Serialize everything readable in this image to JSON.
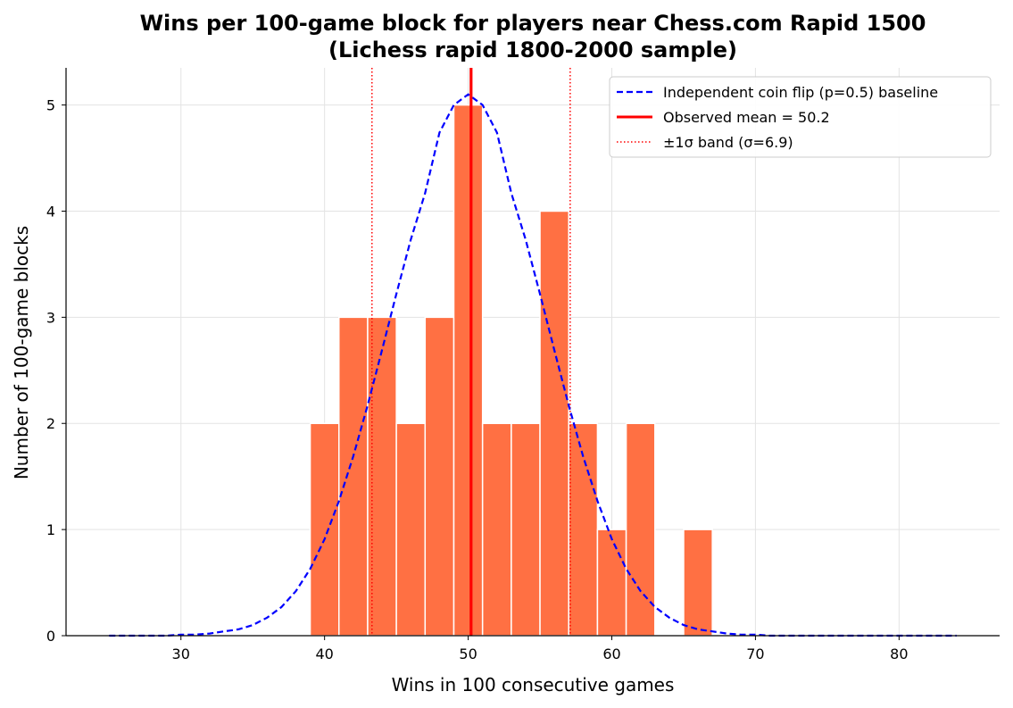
{
  "chart_data": {
    "type": "bar",
    "title": "Wins per 100-game block for players near Chess.com Rapid 1500",
    "subtitle": "(Lichess rapid 1800-2000 sample)",
    "xlabel": "Wins in 100 consecutive games",
    "ylabel": "Number of 100-game blocks",
    "xlim": [
      22,
      87
    ],
    "ylim": [
      0,
      5.35
    ],
    "xticks": [
      30,
      40,
      50,
      60,
      70,
      80
    ],
    "yticks": [
      0,
      1,
      2,
      3,
      4,
      5
    ],
    "grid": true,
    "bar_color": "#FF7043",
    "bins": [
      {
        "x0": 39.0,
        "x1": 41.0,
        "count": 2
      },
      {
        "x0": 41.0,
        "x1": 43.0,
        "count": 3
      },
      {
        "x0": 43.0,
        "x1": 45.0,
        "count": 3
      },
      {
        "x0": 45.0,
        "x1": 47.0,
        "count": 2
      },
      {
        "x0": 47.0,
        "x1": 49.0,
        "count": 3
      },
      {
        "x0": 49.0,
        "x1": 51.0,
        "count": 5
      },
      {
        "x0": 51.0,
        "x1": 53.0,
        "count": 2
      },
      {
        "x0": 53.0,
        "x1": 55.0,
        "count": 2
      },
      {
        "x0": 55.0,
        "x1": 57.0,
        "count": 4
      },
      {
        "x0": 57.0,
        "x1": 59.0,
        "count": 2
      },
      {
        "x0": 59.0,
        "x1": 61.0,
        "count": 1
      },
      {
        "x0": 61.0,
        "x1": 63.0,
        "count": 2
      },
      {
        "x0": 65.0,
        "x1": 67.0,
        "count": 1
      }
    ],
    "baseline_curve": {
      "name": "Independent coin flip (p=0.5) baseline",
      "color": "#0000FF",
      "style": "dashed",
      "x": [
        25,
        26,
        27,
        28,
        29,
        30,
        31,
        32,
        33,
        34,
        35,
        36,
        37,
        38,
        39,
        40,
        41,
        42,
        43,
        44,
        45,
        46,
        47,
        48,
        49,
        50,
        51,
        52,
        53,
        54,
        55,
        56,
        57,
        58,
        59,
        60,
        61,
        62,
        63,
        64,
        65,
        66,
        67,
        68,
        69,
        70,
        71,
        72,
        73,
        74,
        75,
        76,
        77,
        78,
        79,
        80,
        81,
        82,
        83,
        84
      ],
      "y": [
        0.0,
        0.0,
        0.0,
        0.0,
        0.0,
        0.01,
        0.01,
        0.02,
        0.04,
        0.06,
        0.1,
        0.17,
        0.27,
        0.42,
        0.63,
        0.91,
        1.27,
        1.69,
        2.17,
        2.69,
        3.22,
        3.73,
        4.17,
        4.74,
        5.0,
        5.1,
        5.0,
        4.74,
        4.17,
        3.73,
        3.22,
        2.69,
        2.17,
        1.69,
        1.27,
        0.91,
        0.63,
        0.42,
        0.27,
        0.17,
        0.1,
        0.06,
        0.04,
        0.02,
        0.01,
        0.01,
        0.0,
        0.0,
        0.0,
        0.0,
        0.0,
        0.0,
        0.0,
        0.0,
        0.0,
        0.0,
        0.0,
        0.0,
        0.0,
        0.0
      ]
    },
    "mean_line": {
      "name": "Observed mean = 50.2",
      "value": 50.2,
      "color": "#FF0000"
    },
    "sigma_band": {
      "name": "±1σ band (σ=6.9)",
      "lower": 43.3,
      "upper": 57.1,
      "color": "#FF0000",
      "style": "dotted"
    },
    "legend_position": "upper right"
  }
}
